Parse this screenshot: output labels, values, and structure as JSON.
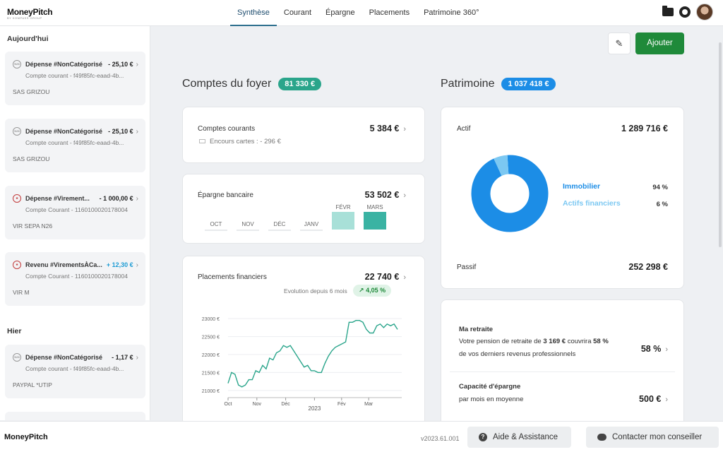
{
  "brand": {
    "name": "MoneyPitch",
    "tagline": "BY KOMPASS GROUP"
  },
  "nav": {
    "tabs": [
      "Synthèse",
      "Courant",
      "Épargne",
      "Placements",
      "Patrimoine 360°"
    ],
    "active": "Synthèse"
  },
  "toolbar": {
    "add_label": "Ajouter"
  },
  "sidebar": {
    "today_heading": "Aujourd'hui",
    "yesterday_heading": "Hier",
    "transactions": [
      {
        "icon": "N26",
        "label": "Dépense #NonCatégorisé",
        "amount": "- 25,10 €",
        "account": "Compte courant - f49f85fc-eaad-4b...",
        "merchant": "SAS GRIZOU"
      },
      {
        "icon": "N26",
        "label": "Dépense #NonCatégorisé",
        "amount": "- 25,10 €",
        "account": "Compte courant - f49f85fc-eaad-4b...",
        "merchant": "SAS GRIZOU"
      },
      {
        "icon": "bank",
        "label": "Dépense #Virement...",
        "amount": "- 1 000,00 €",
        "account": "Compte Courant - 1160100020178004",
        "merchant": "VIR SEPA N26"
      },
      {
        "icon": "bank",
        "label": "Revenu #VirementsÀCa...",
        "amount": "+ 12,30 €",
        "account": "Compte Courant - 1160100020178004",
        "merchant": "VIR M"
      },
      {
        "icon": "N26",
        "label": "Dépense #NonCatégorisé",
        "amount": "- 1,17 €",
        "account": "Compte courant - f49f85fc-eaad-4b...",
        "merchant": "PAYPAL *UTIP"
      }
    ]
  },
  "comptes": {
    "title": "Comptes du foyer",
    "total": "81 330 €",
    "courants": {
      "label": "Comptes courants",
      "value": "5 384 €",
      "sub_label": "Encours cartes :",
      "sub_value": "-  296 €"
    },
    "epargne": {
      "label": "Épargne bancaire",
      "value": "53 502 €",
      "months": [
        "OCT",
        "NOV",
        "DÉC",
        "JANV",
        "FÉVR",
        "MARS"
      ],
      "levels": [
        0,
        0,
        0,
        0,
        0.9,
        0.9
      ]
    },
    "placements": {
      "label": "Placements financiers",
      "value": "22 740 €",
      "evolution_label": "Evolution depuis 6 mois",
      "evolution_value": "4,05 %"
    }
  },
  "chart_data": {
    "type": "line",
    "title": "",
    "xlabel": "",
    "ylabel": "",
    "x_ticks": [
      "Oct",
      "Nov",
      "Déc",
      "2023",
      "Fév",
      "Mar"
    ],
    "y_ticks": [
      "23000 €",
      "22500 €",
      "22000 €",
      "21500 €",
      "21000 €"
    ],
    "ylim": [
      20800,
      23200
    ],
    "series": [
      {
        "values": [
          21200,
          21500,
          21450,
          21150,
          21100,
          21150,
          21300,
          21300,
          21550,
          21500,
          21700,
          21600,
          21900,
          21850,
          22050,
          22100,
          22250,
          22200,
          22250,
          22100,
          21950,
          21800,
          21650,
          21700,
          21550,
          21550,
          21500,
          21500,
          21750,
          21950,
          22100,
          22200,
          22250,
          22300,
          22350,
          22900,
          22900,
          22950,
          22950,
          22900,
          22700,
          22600,
          22600,
          22800,
          22850,
          22750,
          22850,
          22800,
          22850,
          22700
        ]
      }
    ]
  },
  "patrimoine": {
    "title": "Patrimoine",
    "total": "1 037 418 €",
    "actif_label": "Actif",
    "actif_value": "1 289 716 €",
    "passif_label": "Passif",
    "passif_value": "252 298 €",
    "legend": [
      {
        "name": "Immobilier",
        "pct": "94 %",
        "color": "#1c8de6",
        "share": 0.94
      },
      {
        "name": "Actifs financiers",
        "pct": "6 %",
        "color": "#7cc8f2",
        "share": 0.06
      }
    ]
  },
  "retraite": {
    "title": "Ma retraite",
    "line1_pre": "Votre pension de retraite de ",
    "line1_amount": "3 169 €",
    "line1_mid": " couvrira ",
    "line1_pct": "58 %",
    "line2": "de vos derniers revenus professionnels",
    "value": "58 %"
  },
  "capacite": {
    "title": "Capacité d'épargne",
    "sub": "par mois en moyenne",
    "value": "500 €"
  },
  "footer": {
    "version": "v2023.61.001",
    "help_label": "Aide & Assistance",
    "contact_label": "Contacter mon conseiller"
  }
}
